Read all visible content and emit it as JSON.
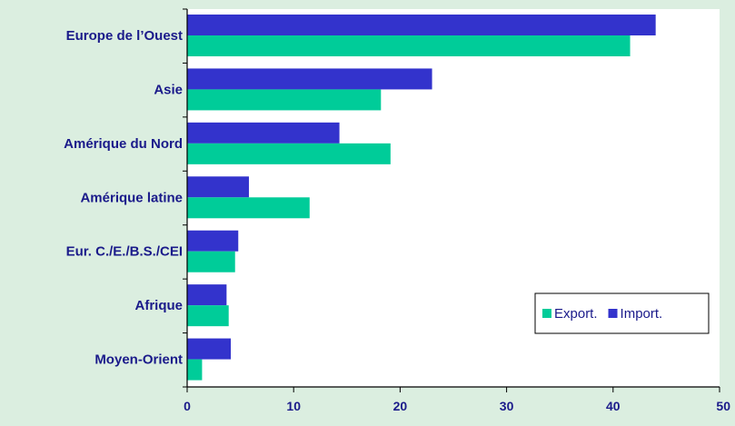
{
  "chart_data": {
    "type": "bar",
    "orientation": "horizontal",
    "categories": [
      "Europe de l’Ouest",
      "Asie",
      "Amérique du Nord",
      "Amérique latine",
      "Eur. C./E./B.S./CEI",
      "Afrique",
      "Moyen-Orient"
    ],
    "series": [
      {
        "name": "Import.",
        "color": "#3333cc",
        "values": [
          44.0,
          23.0,
          14.3,
          5.8,
          4.8,
          3.7,
          4.1
        ]
      },
      {
        "name": "Export.",
        "color": "#00cc99",
        "values": [
          41.6,
          18.2,
          19.1,
          11.5,
          4.5,
          3.9,
          1.4
        ]
      }
    ],
    "legend_order": [
      "Export.",
      "Import."
    ],
    "xlim": [
      0,
      50
    ],
    "xticks": [
      0,
      10,
      20,
      30,
      40,
      50
    ],
    "grid": false,
    "legend_position": "bottom-right",
    "colors": {
      "background": "#dbeee0",
      "plot_background": "#ffffff",
      "text": "#1a1a8a",
      "axis": "#000000"
    }
  }
}
